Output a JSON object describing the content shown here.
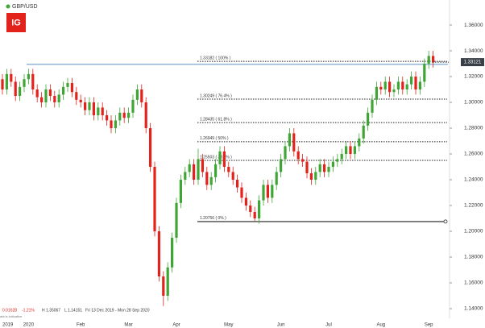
{
  "chart_data": {
    "type": "candlestick",
    "title": "GBP/USD",
    "logo": "IG",
    "categories": [
      "2019",
      null,
      null,
      null,
      null,
      null,
      "2020",
      null,
      null,
      null,
      null,
      null,
      null,
      null,
      null,
      null,
      null,
      null,
      "Feb",
      null,
      null,
      null,
      null,
      null,
      null,
      null,
      null,
      null,
      null,
      "Mar",
      null,
      null,
      null,
      null,
      null,
      null,
      null,
      null,
      null,
      null,
      "Apr",
      null,
      null,
      null,
      null,
      null,
      null,
      null,
      null,
      null,
      null,
      null,
      "May",
      null,
      null,
      null,
      null,
      null,
      null,
      null,
      null,
      null,
      null,
      null,
      "Jun",
      null,
      null,
      null,
      null,
      null,
      null,
      null,
      null,
      null,
      null,
      "Jul",
      null,
      null,
      null,
      null,
      null,
      null,
      null,
      null,
      null,
      null,
      null,
      "Aug",
      null,
      null,
      null,
      null,
      null,
      null,
      null,
      null,
      null,
      null,
      "Sep",
      null
    ],
    "open": [
      1.318,
      1.31,
      1.322,
      1.316,
      1.305,
      1.312,
      1.318,
      1.322,
      1.31,
      1.304,
      1.3,
      1.31,
      1.305,
      1.3,
      1.306,
      1.312,
      1.315,
      1.308,
      1.302,
      1.3,
      1.294,
      1.3,
      1.29,
      1.296,
      1.29,
      1.286,
      1.28,
      1.286,
      1.292,
      1.288,
      1.292,
      1.302,
      1.31,
      1.3,
      1.28,
      1.25,
      1.2,
      1.165,
      1.15,
      1.172,
      1.195,
      1.222,
      1.24,
      1.246,
      1.252,
      1.24,
      1.256,
      1.246,
      1.236,
      1.242,
      1.252,
      1.262,
      1.25,
      1.246,
      1.24,
      1.234,
      1.226,
      1.22,
      1.215,
      1.21,
      1.224,
      1.236,
      1.226,
      1.236,
      1.246,
      1.256,
      1.266,
      1.276,
      1.262,
      1.256,
      1.254,
      1.245,
      1.24,
      1.246,
      1.252,
      1.246,
      1.25,
      1.254,
      1.256,
      1.26,
      1.266,
      1.26,
      1.266,
      1.272,
      1.282,
      1.292,
      1.302,
      1.312,
      1.31,
      1.316,
      1.308,
      1.31,
      1.316,
      1.31,
      1.314,
      1.32,
      1.31,
      1.316,
      1.33,
      1.336
    ],
    "high": [
      1.322,
      1.326,
      1.326,
      1.32,
      1.316,
      1.322,
      1.326,
      1.326,
      1.314,
      1.308,
      1.314,
      1.314,
      1.309,
      1.31,
      1.316,
      1.319,
      1.319,
      1.312,
      1.306,
      1.304,
      1.304,
      1.304,
      1.3,
      1.3,
      1.294,
      1.29,
      1.29,
      1.296,
      1.296,
      1.296,
      1.306,
      1.314,
      1.314,
      1.304,
      1.284,
      1.254,
      1.204,
      1.169,
      1.176,
      1.199,
      1.226,
      1.244,
      1.25,
      1.256,
      1.256,
      1.264,
      1.26,
      1.25,
      1.246,
      1.256,
      1.266,
      1.266,
      1.254,
      1.25,
      1.244,
      1.238,
      1.23,
      1.224,
      1.219,
      1.228,
      1.24,
      1.24,
      1.24,
      1.25,
      1.26,
      1.27,
      1.28,
      1.28,
      1.266,
      1.26,
      1.258,
      1.249,
      1.25,
      1.256,
      1.256,
      1.254,
      1.258,
      1.26,
      1.264,
      1.27,
      1.27,
      1.27,
      1.276,
      1.286,
      1.296,
      1.306,
      1.316,
      1.316,
      1.32,
      1.32,
      1.314,
      1.32,
      1.32,
      1.318,
      1.324,
      1.324,
      1.32,
      1.334,
      1.34,
      1.34
    ],
    "low": [
      1.306,
      1.306,
      1.312,
      1.301,
      1.301,
      1.308,
      1.314,
      1.306,
      1.3,
      1.296,
      1.296,
      1.301,
      1.296,
      1.296,
      1.302,
      1.308,
      1.304,
      1.298,
      1.296,
      1.29,
      1.29,
      1.286,
      1.286,
      1.286,
      1.282,
      1.276,
      1.276,
      1.282,
      1.284,
      1.284,
      1.288,
      1.298,
      1.296,
      1.276,
      1.246,
      1.196,
      1.161,
      1.142,
      1.146,
      1.168,
      1.191,
      1.218,
      1.236,
      1.242,
      1.236,
      1.236,
      1.242,
      1.232,
      1.232,
      1.238,
      1.248,
      1.246,
      1.242,
      1.236,
      1.23,
      1.222,
      1.216,
      1.211,
      1.208,
      1.206,
      1.22,
      1.222,
      1.222,
      1.232,
      1.242,
      1.252,
      1.262,
      1.258,
      1.252,
      1.25,
      1.241,
      1.236,
      1.236,
      1.242,
      1.242,
      1.242,
      1.246,
      1.25,
      1.252,
      1.256,
      1.256,
      1.256,
      1.262,
      1.268,
      1.278,
      1.288,
      1.298,
      1.306,
      1.306,
      1.304,
      1.304,
      1.306,
      1.306,
      1.306,
      1.31,
      1.306,
      1.306,
      1.312,
      1.326,
      1.327
    ],
    "close": [
      1.31,
      1.322,
      1.316,
      1.305,
      1.312,
      1.318,
      1.322,
      1.31,
      1.304,
      1.3,
      1.31,
      1.305,
      1.3,
      1.306,
      1.312,
      1.315,
      1.308,
      1.302,
      1.3,
      1.294,
      1.3,
      1.29,
      1.296,
      1.29,
      1.286,
      1.28,
      1.286,
      1.292,
      1.288,
      1.292,
      1.302,
      1.31,
      1.3,
      1.28,
      1.25,
      1.2,
      1.165,
      1.15,
      1.172,
      1.195,
      1.222,
      1.24,
      1.246,
      1.252,
      1.24,
      1.256,
      1.246,
      1.236,
      1.242,
      1.252,
      1.262,
      1.25,
      1.246,
      1.24,
      1.234,
      1.226,
      1.22,
      1.215,
      1.21,
      1.224,
      1.236,
      1.226,
      1.236,
      1.246,
      1.256,
      1.266,
      1.276,
      1.262,
      1.256,
      1.254,
      1.245,
      1.24,
      1.246,
      1.252,
      1.246,
      1.25,
      1.254,
      1.256,
      1.26,
      1.266,
      1.26,
      1.266,
      1.272,
      1.282,
      1.292,
      1.302,
      1.312,
      1.31,
      1.316,
      1.308,
      1.31,
      1.316,
      1.31,
      1.314,
      1.32,
      1.31,
      1.316,
      1.33,
      1.336,
      1.331
    ],
    "up_color": "#3fa535",
    "down_color": "#e3221c",
    "ylim": [
      1.1325,
      1.3794
    ],
    "yticks": [
      {
        "value": 1.14,
        "label": "1.14000"
      },
      {
        "value": 1.16,
        "label": "1.16000"
      },
      {
        "value": 1.18,
        "label": "1.18000"
      },
      {
        "value": 1.2,
        "label": "1.20000"
      },
      {
        "value": 1.22,
        "label": "1.22000"
      },
      {
        "value": 1.24,
        "label": "1.24000"
      },
      {
        "value": 1.26,
        "label": "1.26000"
      },
      {
        "value": 1.28,
        "label": "1.28000"
      },
      {
        "value": 1.3,
        "label": "1.30000"
      },
      {
        "value": 1.32,
        "label": "1.32000"
      },
      {
        "value": 1.34,
        "label": "1.34000"
      },
      {
        "value": 1.36,
        "label": "1.36000"
      }
    ],
    "fib_levels": [
      {
        "value": 1.33182,
        "label": "1.33182 ( 100% )"
      },
      {
        "value": 1.30249,
        "label": "1.30249 ( 76.4% )"
      },
      {
        "value": 1.28435,
        "label": "1.28435 ( 61.8% )"
      },
      {
        "value": 1.26949,
        "label": "1.26949 ( 50% )"
      },
      {
        "value": 1.25503,
        "label": "1.25503 ( 38.2% )"
      },
      {
        "value": 1.20756,
        "label": "1.20756 ( 0% )"
      }
    ],
    "horizontal_line": 1.3295,
    "last_price": 1.33121,
    "info": {
      "change": "0.01628",
      "change_pct": "-1.21%",
      "high": "H 1.35067",
      "low": "L 1.14151",
      "range": "Fri 13 Dec 2019 - Mon 28 Sep 2020",
      "note": "ata is indicative"
    }
  }
}
